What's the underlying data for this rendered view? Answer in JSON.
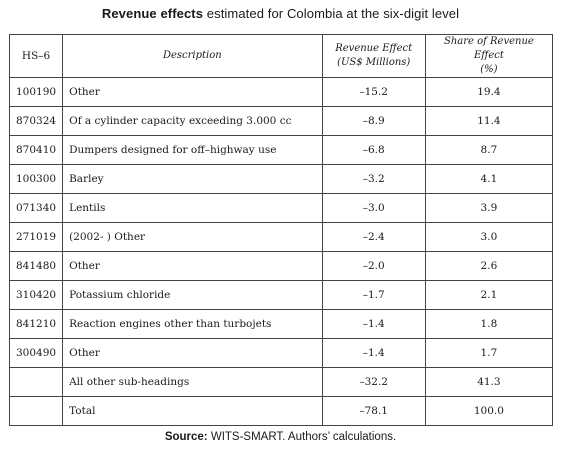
{
  "title": {
    "bold": "Revenue effects",
    "rest": " estimated for Colombia at the six-digit level"
  },
  "table": {
    "headers": {
      "hs": "HS–6",
      "description": "Description",
      "revenue_line1": "Revenue Effect",
      "revenue_line2": "(US$ Millions)",
      "share_line1": "Share of Revenue Effect",
      "share_line2": "(%)"
    },
    "rows": [
      {
        "hs": "100190",
        "desc": "Other",
        "rev": "–15.2",
        "share": "19.4"
      },
      {
        "hs": "870324",
        "desc": "Of a cylinder capacity exceeding 3.000 cc",
        "rev": "–8.9",
        "share": "11.4"
      },
      {
        "hs": "870410",
        "desc": "Dumpers designed for off–highway use",
        "rev": "–6.8",
        "share": "8.7"
      },
      {
        "hs": "100300",
        "desc": "Barley",
        "rev": "–3.2",
        "share": "4.1"
      },
      {
        "hs": "071340",
        "desc": "Lentils",
        "rev": "–3.0",
        "share": "3.9"
      },
      {
        "hs": "271019",
        "desc": "(2002- ) Other",
        "rev": "–2.4",
        "share": "3.0"
      },
      {
        "hs": "841480",
        "desc": "Other",
        "rev": "–2.0",
        "share": "2.6"
      },
      {
        "hs": "310420",
        "desc": "Potassium chloride",
        "rev": "–1.7",
        "share": "2.1"
      },
      {
        "hs": "841210",
        "desc": "Reaction engines other than turbojets",
        "rev": "–1.4",
        "share": "1.8"
      },
      {
        "hs": "300490",
        "desc": "Other",
        "rev": "–1.4",
        "share": "1.7"
      },
      {
        "hs": "",
        "desc": "All other sub-headings",
        "rev": "–32.2",
        "share": "41.3"
      },
      {
        "hs": "",
        "desc": "Total",
        "rev": "–78.1",
        "share": "100.0"
      }
    ]
  },
  "source": {
    "bold": "Source:",
    "rest": " WITS-SMART. Authors’ calculations."
  }
}
